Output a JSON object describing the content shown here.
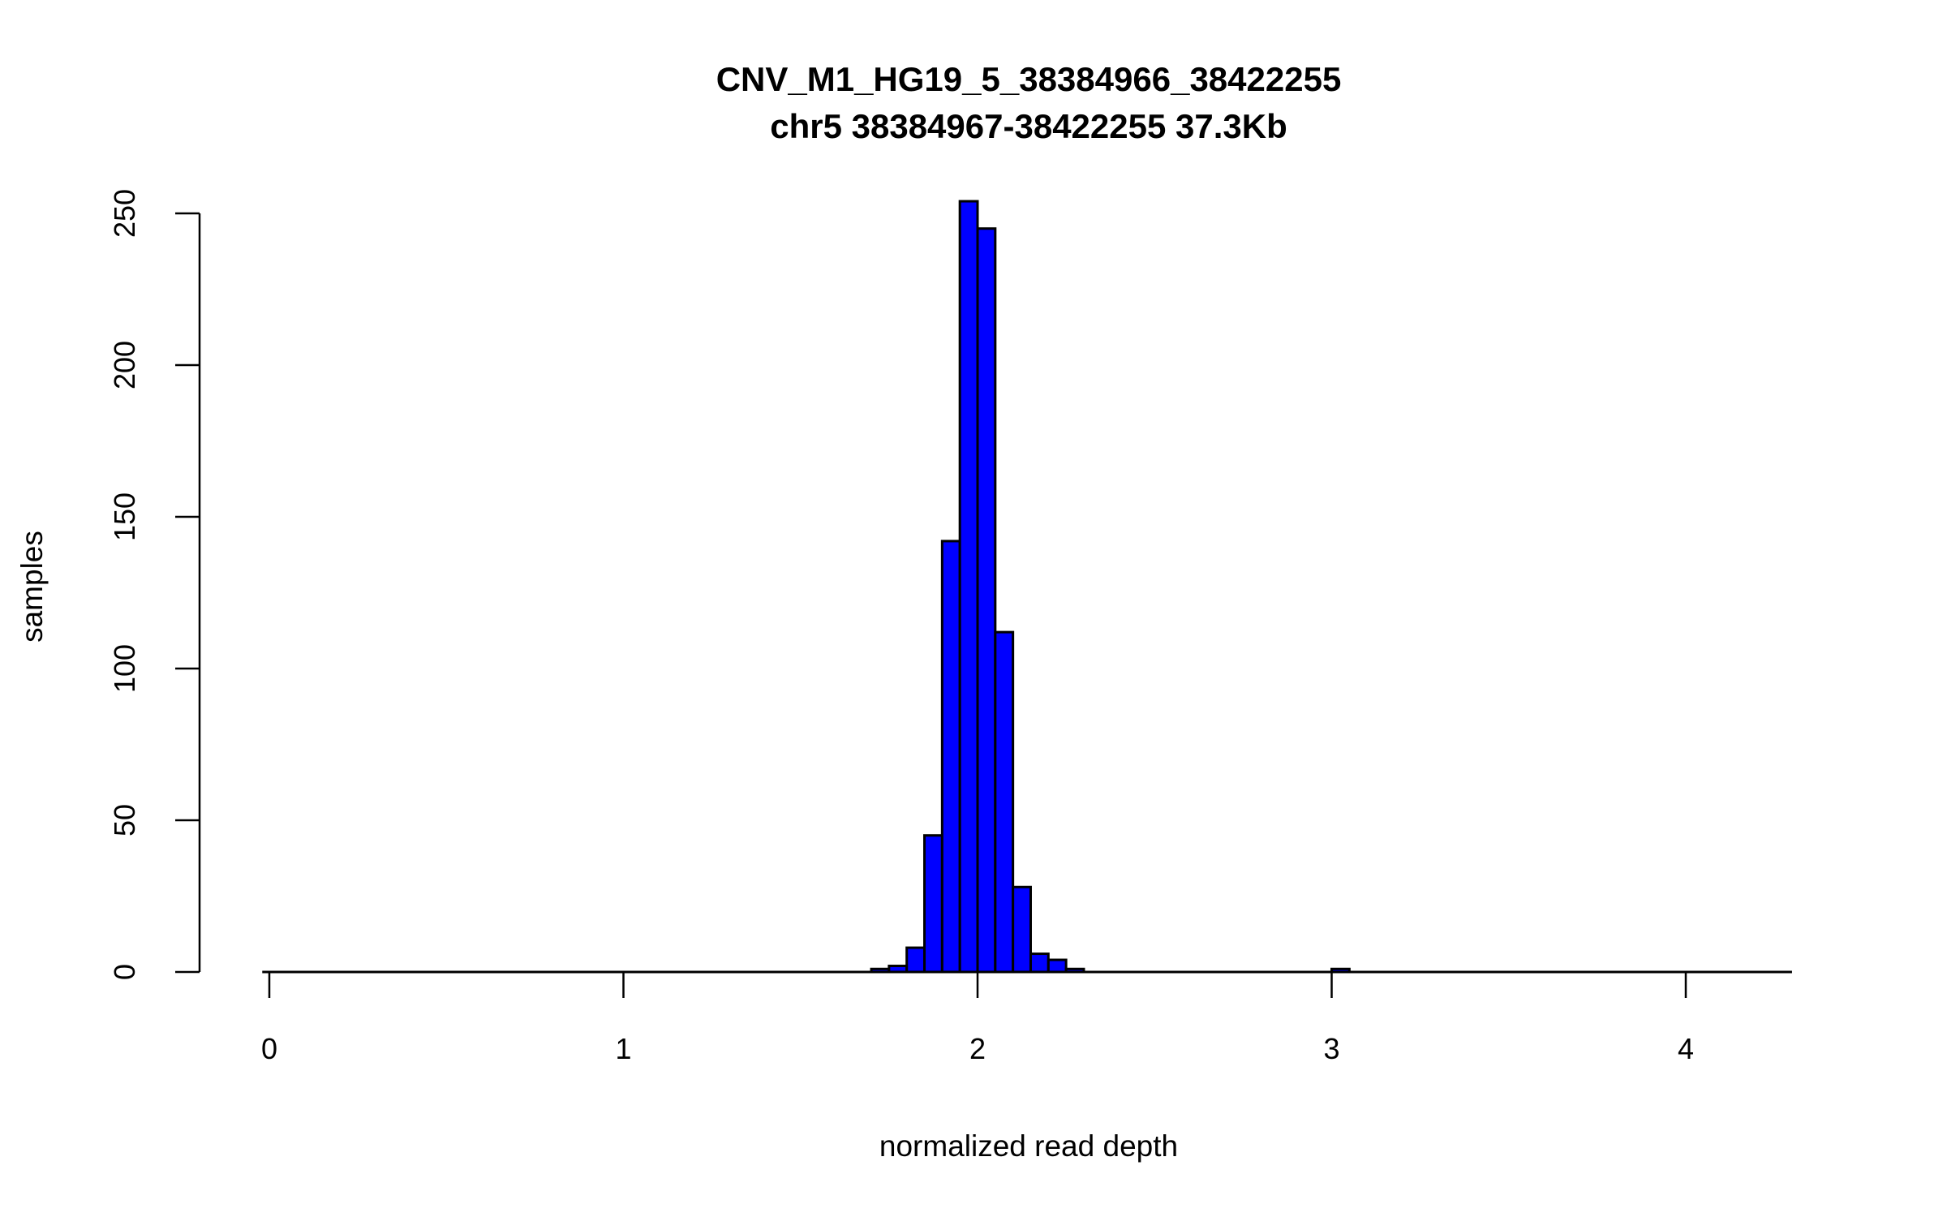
{
  "chart_data": {
    "type": "bar",
    "title": "CNV_M1_HG19_5_38384966_38422255",
    "subtitle": "chr5 38384967-38422255 37.3Kb",
    "xlabel": "normalized read depth",
    "ylabel": "samples",
    "xlim": [
      0,
      4.3
    ],
    "ylim": [
      0,
      250
    ],
    "xticks": [
      "0",
      "1",
      "2",
      "3",
      "4"
    ],
    "yticks": [
      "0",
      "50",
      "100",
      "150",
      "200",
      "250"
    ],
    "bin_width": 0.05,
    "bins": [
      {
        "start": 1.7,
        "count": 1
      },
      {
        "start": 1.75,
        "count": 2
      },
      {
        "start": 1.8,
        "count": 8
      },
      {
        "start": 1.85,
        "count": 45
      },
      {
        "start": 1.9,
        "count": 142
      },
      {
        "start": 1.95,
        "count": 254
      },
      {
        "start": 2.0,
        "count": 245
      },
      {
        "start": 2.05,
        "count": 112
      },
      {
        "start": 2.1,
        "count": 28
      },
      {
        "start": 2.15,
        "count": 6
      },
      {
        "start": 2.2,
        "count": 4
      },
      {
        "start": 2.25,
        "count": 1
      },
      {
        "start": 3.0,
        "count": 1
      }
    ],
    "bar_color": "#0000ff",
    "grid": false
  }
}
